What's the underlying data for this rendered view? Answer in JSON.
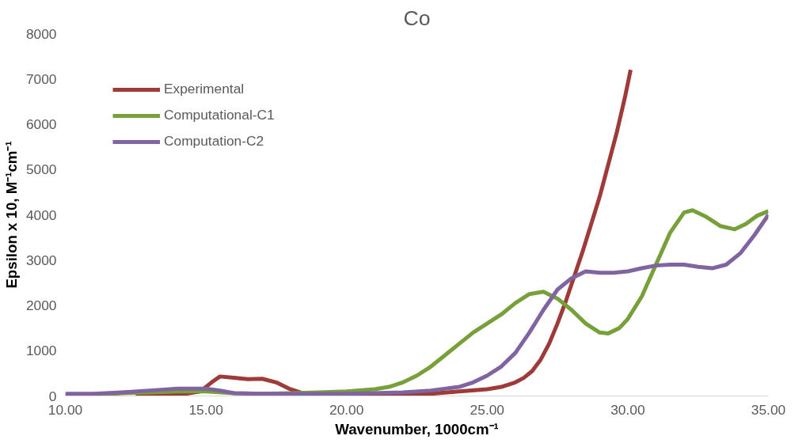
{
  "chart_data": {
    "type": "line",
    "title": "Co",
    "xlabel": "Wavenumber, 1000cm⁻¹",
    "ylabel": "Epsilon x 10, M⁻¹cm⁻¹",
    "xlim": [
      10,
      35
    ],
    "ylim": [
      0,
      8000
    ],
    "xticks": [
      {
        "value": 10,
        "label": "10.00"
      },
      {
        "value": 15,
        "label": "15.00"
      },
      {
        "value": 20,
        "label": "20.00"
      },
      {
        "value": 25,
        "label": "25.00"
      },
      {
        "value": 30,
        "label": "30.00"
      },
      {
        "value": 35,
        "label": "35.00"
      }
    ],
    "yticks": [
      0,
      1000,
      2000,
      3000,
      4000,
      5000,
      6000,
      7000,
      8000
    ],
    "grid": false,
    "legend": "top left",
    "marker": "none",
    "line_style": "solid",
    "series": [
      {
        "name": "Experimental",
        "color": "#9e3a37",
        "x": [
          12.5,
          14,
          14.8,
          15.2,
          15.5,
          16,
          16.5,
          17,
          17.5,
          18,
          18.5,
          19,
          20,
          21,
          22,
          23,
          24,
          25,
          25.5,
          26,
          26.3,
          26.6,
          26.9,
          27.2,
          27.5,
          27.8,
          28.1,
          28.4,
          28.7,
          29,
          29.3,
          29.6,
          29.9,
          30.1
        ],
        "values": [
          0,
          20,
          100,
          300,
          430,
          400,
          370,
          380,
          300,
          150,
          50,
          20,
          20,
          20,
          20,
          50,
          100,
          150,
          200,
          300,
          400,
          550,
          800,
          1150,
          1600,
          2100,
          2650,
          3200,
          3800,
          4400,
          5100,
          5800,
          6600,
          7200
        ]
      },
      {
        "name": "Computational-C1",
        "color": "#77a03a",
        "x": [
          10,
          11,
          12,
          13,
          14,
          15,
          16,
          17,
          18,
          19,
          20,
          21,
          21.5,
          22,
          22.5,
          23,
          23.5,
          24,
          24.5,
          25,
          25.5,
          26,
          26.5,
          27,
          27.5,
          28,
          28.5,
          29,
          29.3,
          29.7,
          30,
          30.5,
          31,
          31.5,
          32,
          32.3,
          32.8,
          33.3,
          33.8,
          34.2,
          34.6,
          35
        ],
        "values": [
          0,
          null,
          60,
          80,
          100,
          100,
          60,
          50,
          60,
          80,
          100,
          150,
          200,
          300,
          450,
          650,
          900,
          1150,
          1400,
          1600,
          1800,
          2050,
          2250,
          2300,
          2150,
          1900,
          1600,
          1400,
          1380,
          1500,
          1700,
          2200,
          2900,
          3600,
          4050,
          4100,
          3950,
          3750,
          3680,
          3800,
          3980,
          4080
        ]
      },
      {
        "name": "Computation-C2",
        "color": "#8064a2",
        "x": [
          10,
          11,
          12,
          13,
          14,
          15,
          15.5,
          16,
          17,
          20,
          22,
          23,
          24,
          24.5,
          25,
          25.5,
          26,
          26.5,
          27,
          27.5,
          28,
          28.5,
          29,
          29.5,
          30,
          30.5,
          31,
          31.5,
          32,
          32.5,
          33,
          33.5,
          34,
          34.5,
          35
        ],
        "values": [
          50,
          50,
          80,
          120,
          160,
          160,
          120,
          60,
          50,
          50,
          80,
          120,
          200,
          300,
          450,
          650,
          950,
          1400,
          1900,
          2350,
          2600,
          2750,
          2720,
          2720,
          2750,
          2820,
          2880,
          2900,
          2900,
          2850,
          2820,
          2900,
          3150,
          3550,
          4000
        ]
      }
    ]
  }
}
